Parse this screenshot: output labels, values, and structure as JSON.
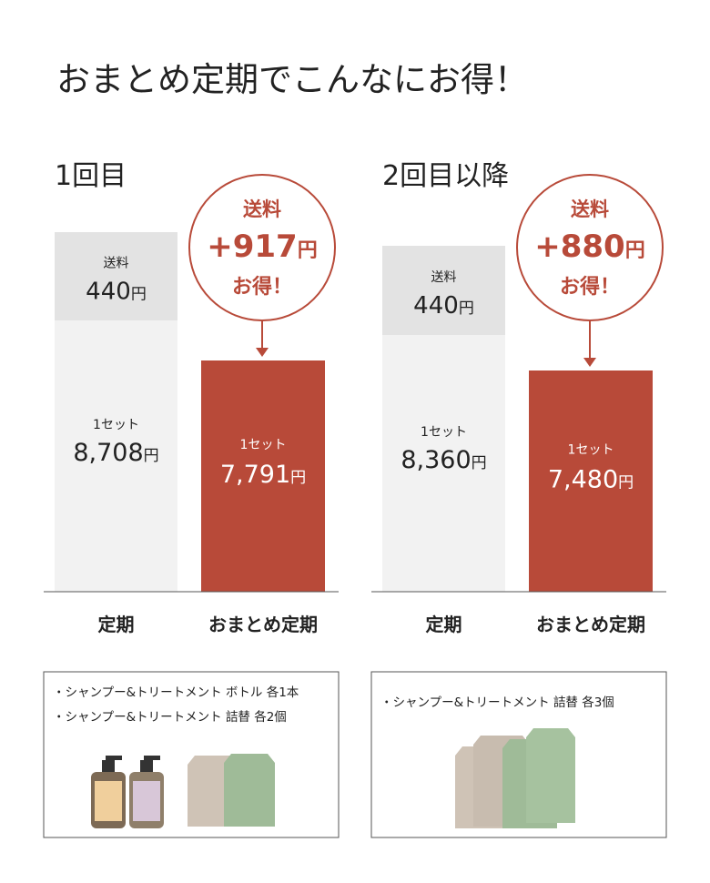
{
  "title": "おまとめ定期でこんなにお得！",
  "currency": "円",
  "panels": [
    {
      "heading": "1回目",
      "regular": {
        "label": "定期",
        "shipping_label": "送料",
        "shipping_price": "440",
        "set_label": "1セット",
        "set_price": "8,708"
      },
      "bundle": {
        "label": "おまとめ定期",
        "set_label": "1セット",
        "set_price": "7,791"
      },
      "badge": {
        "top": "送料",
        "amount": "+917",
        "bottom": "お得！"
      },
      "items": [
        "・シャンプー&トリートメント ボトル 各1本",
        "・シャンプー&トリートメント 詰替 各2個"
      ]
    },
    {
      "heading": "2回目以降",
      "regular": {
        "label": "定期",
        "shipping_label": "送料",
        "shipping_price": "440",
        "set_label": "1セット",
        "set_price": "8,360"
      },
      "bundle": {
        "label": "おまとめ定期",
        "set_label": "1セット",
        "set_price": "7,480"
      },
      "badge": {
        "top": "送料",
        "amount": "+880",
        "bottom": "お得！"
      },
      "items": [
        "・シャンプー&トリートメント 詰替 各3個"
      ]
    }
  ]
}
